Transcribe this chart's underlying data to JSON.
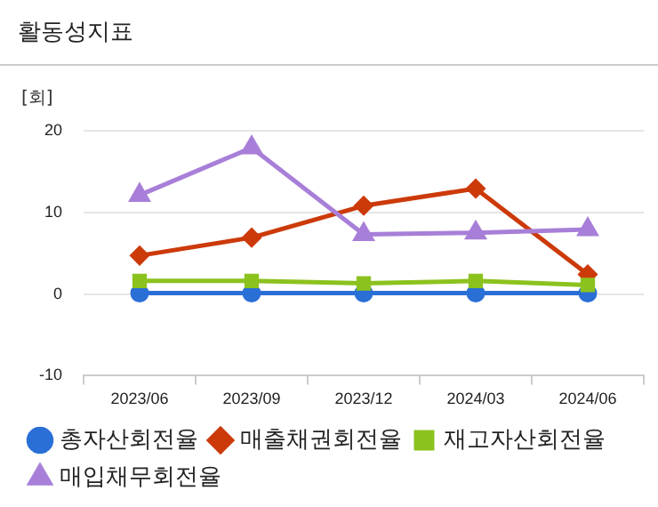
{
  "chart_data": {
    "type": "line",
    "title": "활동성지표",
    "ylabel": "[회]",
    "categories": [
      "2023/06",
      "2023/09",
      "2023/12",
      "2024/03",
      "2024/06"
    ],
    "series": [
      {
        "name": "총자산회전율",
        "color": "#2a6fd6",
        "marker": "circle",
        "values": [
          0.1,
          0.1,
          0.1,
          0.1,
          0.1
        ]
      },
      {
        "name": "매출채권회전율",
        "color": "#cc3a0a",
        "marker": "diamond",
        "values": [
          4.7,
          6.9,
          10.8,
          12.9,
          2.4
        ]
      },
      {
        "name": "재고자산회전율",
        "color": "#8cc21e",
        "marker": "square",
        "values": [
          1.6,
          1.6,
          1.3,
          1.6,
          1.1
        ]
      },
      {
        "name": "매입채무회전율",
        "color": "#a87fd8",
        "marker": "triangle",
        "values": [
          12.1,
          17.9,
          7.3,
          7.5,
          7.9
        ]
      }
    ],
    "ylim": [
      -10,
      20
    ],
    "yticks": [
      -10,
      0,
      10,
      20
    ],
    "grid": "y",
    "legend": "bottom"
  }
}
